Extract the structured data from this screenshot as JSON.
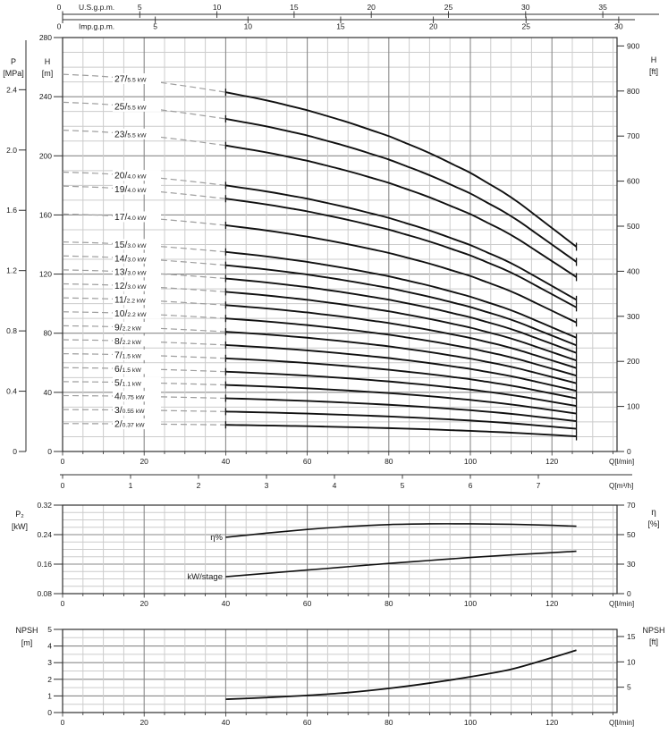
{
  "colors": {
    "text": "#1a1a1a",
    "frame": "#2f2f2f",
    "grid_minor": "#cccccc",
    "grid_major": "#8a8a8a",
    "curve": "#101010",
    "dashed_curve": "#9e9e9e",
    "background": "#ffffff"
  },
  "chart_data": [
    {
      "id": "head-curves",
      "type": "line",
      "top_axes": [
        {
          "label": "U.S.g.p.m.",
          "ticks": [
            "0",
            "5",
            "10",
            "15",
            "20",
            "25",
            "30",
            "35"
          ],
          "lpm_per_unit": 3.785
        },
        {
          "label": "Imp.g.p.m.",
          "ticks": [
            "0",
            "5",
            "10",
            "15",
            "20",
            "25",
            "30"
          ],
          "lpm_per_unit": 4.546
        }
      ],
      "x_axis": {
        "label": "Q[l/min]",
        "ticks": [
          "0",
          "20",
          "40",
          "60",
          "80",
          "100",
          "120"
        ],
        "max": 136
      },
      "x_axis_m3h": {
        "label": "Q[m³/h]",
        "ticks": [
          "0",
          "1",
          "2",
          "3",
          "4",
          "5",
          "6",
          "7"
        ],
        "lpm_per_unit": 16.667
      },
      "y_axis_pressure": {
        "title": "P",
        "unit": "[MPa]",
        "ticks": [
          "0",
          "0.4",
          "0.8",
          "1.2",
          "1.6",
          "2.0",
          "2.4"
        ]
      },
      "y_axis_head_m": {
        "title": "H",
        "unit": "[m]",
        "ticks": [
          "0",
          "40",
          "80",
          "120",
          "160",
          "200",
          "240",
          "280"
        ],
        "max": 280
      },
      "y_axis_head_ft": {
        "title": "H",
        "unit": "[ft]",
        "ticks": [
          "0",
          "100",
          "200",
          "300",
          "400",
          "500",
          "600",
          "700",
          "800",
          "900"
        ]
      },
      "per_stage_head_curve": {
        "q_lpm": [
          0,
          10,
          20,
          30,
          40,
          50,
          60,
          70,
          80,
          90,
          100,
          110,
          120,
          126
        ],
        "head_m_per_stage": [
          9.45,
          9.4,
          9.3,
          9.16,
          9.0,
          8.8,
          8.55,
          8.25,
          7.9,
          7.48,
          6.98,
          6.38,
          5.6,
          5.13
        ]
      },
      "dashed_range_lpm": [
        0,
        40
      ],
      "solid_range_lpm": [
        40,
        126
      ],
      "series": [
        {
          "stages": "27",
          "power": "5.5 kW"
        },
        {
          "stages": "25",
          "power": "5.5 kW"
        },
        {
          "stages": "23",
          "power": "5.5 kW"
        },
        {
          "stages": "20",
          "power": "4.0 kW"
        },
        {
          "stages": "19",
          "power": "4.0 kW"
        },
        {
          "stages": "17",
          "power": "4.0 kW"
        },
        {
          "stages": "15",
          "power": "3.0 kW"
        },
        {
          "stages": "14",
          "power": "3.0 kW"
        },
        {
          "stages": "13",
          "power": "3.0 kW"
        },
        {
          "stages": "12",
          "power": "3.0 kW"
        },
        {
          "stages": "11",
          "power": "2.2 kW"
        },
        {
          "stages": "10",
          "power": "2.2 kW"
        },
        {
          "stages": "9",
          "power": "2.2 kW"
        },
        {
          "stages": "8",
          "power": "2.2 kW"
        },
        {
          "stages": "7",
          "power": "1.5 kW"
        },
        {
          "stages": "6",
          "power": "1.5 kW"
        },
        {
          "stages": "5",
          "power": "1.1 kW"
        },
        {
          "stages": "4",
          "power": "0.75 kW"
        },
        {
          "stages": "3",
          "power": "0.55 kW"
        },
        {
          "stages": "2",
          "power": "0.37 kW"
        }
      ]
    },
    {
      "id": "power-efficiency",
      "type": "line",
      "y_axis_left": {
        "title": "P₂",
        "unit": "[kW]",
        "ticks": [
          "0.08",
          "0.16",
          "0.24",
          "0.32"
        ],
        "min": 0.08,
        "max": 0.32
      },
      "y_axis_right": {
        "title": "η",
        "unit": "[%]",
        "ticks": [
          "0",
          "30",
          "50",
          "70"
        ]
      },
      "x_axis": {
        "label": "Q[l/min]",
        "ticks": [
          "0",
          "20",
          "40",
          "60",
          "80",
          "100",
          "120"
        ]
      },
      "series": [
        {
          "name": "η%",
          "q_lpm": [
            40,
            50,
            60,
            70,
            80,
            90,
            100,
            110,
            120,
            126
          ],
          "eta_percent": [
            48.2,
            51.0,
            53.5,
            55.5,
            56.8,
            57.3,
            57.3,
            57.0,
            56.3,
            55.7
          ]
        },
        {
          "name": "kW/stage",
          "q_lpm": [
            40,
            50,
            60,
            70,
            80,
            90,
            100,
            110,
            120,
            126
          ],
          "kw": [
            0.126,
            0.135,
            0.144,
            0.153,
            0.162,
            0.17,
            0.178,
            0.185,
            0.191,
            0.195
          ]
        }
      ]
    },
    {
      "id": "npsh",
      "type": "line",
      "y_axis_left": {
        "title": "NPSH",
        "unit": "[m]",
        "ticks": [
          "0",
          "1",
          "2",
          "3",
          "4",
          "5"
        ],
        "max": 5
      },
      "y_axis_right": {
        "title": "NPSH",
        "unit": "[ft]",
        "ticks": [
          "5",
          "10",
          "15"
        ]
      },
      "x_axis": {
        "label": "Q[l/min]",
        "ticks": [
          "0",
          "20",
          "40",
          "60",
          "80",
          "100",
          "120"
        ]
      },
      "series": [
        {
          "name": "NPSH",
          "q_lpm": [
            40,
            50,
            60,
            70,
            80,
            90,
            100,
            110,
            120,
            126
          ],
          "npsh_m": [
            0.8,
            0.9,
            1.03,
            1.2,
            1.45,
            1.77,
            2.15,
            2.6,
            3.3,
            3.75
          ]
        }
      ]
    }
  ]
}
